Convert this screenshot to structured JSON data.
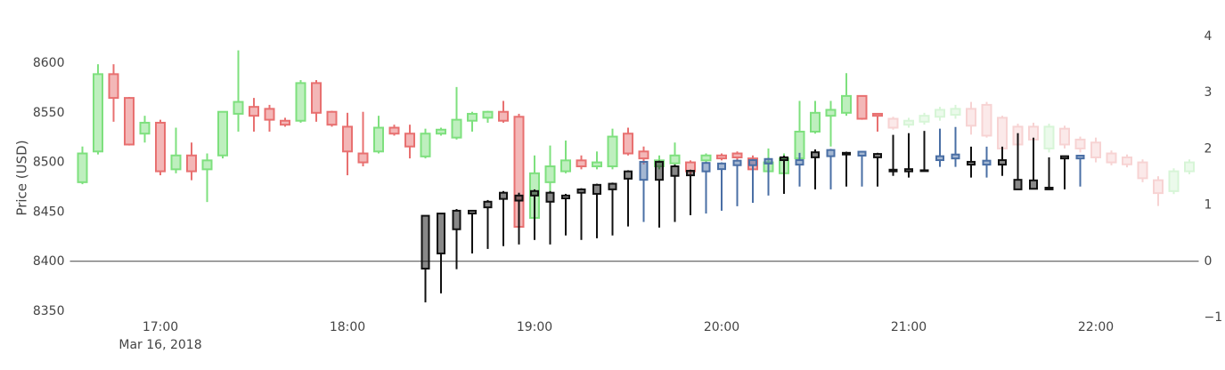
{
  "chart_data": {
    "type": "candlestick",
    "y_label": "Price (USD)",
    "x_date_label": "Mar 16, 2018",
    "xlim": [
      "2018-03-16 16:31",
      "2018-03-16 22:33"
    ],
    "xticks": [
      {
        "value": "2018-03-16 17:00",
        "label": "17:00"
      },
      {
        "value": "2018-03-16 18:00",
        "label": "18:00"
      },
      {
        "value": "2018-03-16 19:00",
        "label": "19:00"
      },
      {
        "value": "2018-03-16 20:00",
        "label": "20:00"
      },
      {
        "value": "2018-03-16 21:00",
        "label": "21:00"
      },
      {
        "value": "2018-03-16 22:00",
        "label": "22:00"
      }
    ],
    "ylim": [
      8343.5,
      8627
    ],
    "yticks": [
      8350,
      8400,
      8450,
      8500,
      8550,
      8600
    ],
    "y2lim": [
      -1,
      4
    ],
    "y2ticks": [
      {
        "value": -1,
        "label": "−1"
      },
      0,
      1,
      2,
      3,
      4
    ],
    "y2_zeroline": true,
    "grid": false,
    "series": [
      {
        "increasing_color": "#7ee07e",
        "decreasing_color": "#e87070",
        "opacity": 1,
        "x": [
          "2018-03-16 16:35",
          "2018-03-16 16:40",
          "2018-03-16 16:45",
          "2018-03-16 16:50",
          "2018-03-16 16:55",
          "2018-03-16 17:00",
          "2018-03-16 17:05",
          "2018-03-16 17:10",
          "2018-03-16 17:15",
          "2018-03-16 17:20",
          "2018-03-16 17:25",
          "2018-03-16 17:30",
          "2018-03-16 17:35",
          "2018-03-16 17:40",
          "2018-03-16 17:45",
          "2018-03-16 17:50",
          "2018-03-16 17:55",
          "2018-03-16 18:00",
          "2018-03-16 18:05",
          "2018-03-16 18:10",
          "2018-03-16 18:15",
          "2018-03-16 18:20",
          "2018-03-16 18:25",
          "2018-03-16 18:30",
          "2018-03-16 18:35",
          "2018-03-16 18:40",
          "2018-03-16 18:45",
          "2018-03-16 18:50",
          "2018-03-16 18:55",
          "2018-03-16 19:00",
          "2018-03-16 19:05",
          "2018-03-16 19:10",
          "2018-03-16 19:15",
          "2018-03-16 19:20",
          "2018-03-16 19:25",
          "2018-03-16 19:30",
          "2018-03-16 19:35",
          "2018-03-16 19:40",
          "2018-03-16 19:45",
          "2018-03-16 19:50",
          "2018-03-16 19:55",
          "2018-03-16 20:00",
          "2018-03-16 20:05",
          "2018-03-16 20:10",
          "2018-03-16 20:15",
          "2018-03-16 20:20",
          "2018-03-16 20:25",
          "2018-03-16 20:30",
          "2018-03-16 20:35",
          "2018-03-16 20:40",
          "2018-03-16 20:45",
          "2018-03-16 20:50"
        ],
        "open": [
          8480,
          8511,
          8589,
          8565,
          8529,
          8540,
          8493,
          8507,
          8493,
          8507,
          8549,
          8556,
          8554,
          8542,
          8542,
          8580,
          8551,
          8536,
          8509,
          8511,
          8535,
          8529,
          8506,
          8529,
          8525,
          8542,
          8545,
          8551,
          8546,
          8444,
          8480,
          8491,
          8502,
          8496,
          8496,
          8529,
          8511,
          8496,
          8499,
          8500,
          8502,
          8507,
          8509,
          8504,
          8491,
          8489,
          8504,
          8531,
          8547,
          8550,
          8567,
          8549
        ],
        "high": [
          8516,
          8599,
          8599,
          8566,
          8547,
          8543,
          8535,
          8520,
          8509,
          8551,
          8613,
          8565,
          8558,
          8545,
          8583,
          8583,
          8552,
          8550,
          8551,
          8547,
          8538,
          8538,
          8534,
          8535,
          8576,
          8551,
          8552,
          8562,
          8549,
          8507,
          8517,
          8522,
          8507,
          8511,
          8534,
          8535,
          8516,
          8507,
          8520,
          8502,
          8509,
          8509,
          8511,
          8507,
          8514,
          8509,
          8562,
          8562,
          8562,
          8590,
          8567,
          8549
        ],
        "low": [
          8478,
          8508,
          8541,
          8517,
          8520,
          8487,
          8489,
          8482,
          8460,
          8504,
          8531,
          8531,
          8531,
          8536,
          8540,
          8541,
          8536,
          8487,
          8496,
          8509,
          8527,
          8504,
          8504,
          8527,
          8523,
          8531,
          8540,
          8540,
          8435,
          8441,
          8471,
          8489,
          8493,
          8493,
          8493,
          8507,
          8498,
          8493,
          8496,
          8487,
          8500,
          8502,
          8502,
          8491,
          8487,
          8487,
          8502,
          8529,
          8516,
          8547,
          8543,
          8531
        ],
        "close": [
          8509,
          8589,
          8565,
          8518,
          8540,
          8491,
          8507,
          8491,
          8502,
          8551,
          8561,
          8547,
          8543,
          8538,
          8580,
          8550,
          8538,
          8511,
          8500,
          8535,
          8529,
          8516,
          8529,
          8533,
          8543,
          8549,
          8551,
          8542,
          8435,
          8489,
          8496,
          8502,
          8496,
          8500,
          8526,
          8509,
          8504,
          8502,
          8507,
          8491,
          8507,
          8504,
          8505,
          8493,
          8500,
          8504,
          8531,
          8550,
          8553,
          8567,
          8544,
          8547
        ]
      },
      {
        "increasing_color": "#7ee07e",
        "decreasing_color": "#e87070",
        "opacity": 0.3,
        "x": [
          "2018-03-16 20:55",
          "2018-03-16 21:00",
          "2018-03-16 21:05",
          "2018-03-16 21:10",
          "2018-03-16 21:15",
          "2018-03-16 21:20",
          "2018-03-16 21:25",
          "2018-03-16 21:30",
          "2018-03-16 21:35",
          "2018-03-16 21:40",
          "2018-03-16 21:45",
          "2018-03-16 21:50",
          "2018-03-16 21:55",
          "2018-03-16 22:00",
          "2018-03-16 22:05",
          "2018-03-16 22:10",
          "2018-03-16 22:15",
          "2018-03-16 22:20",
          "2018-03-16 22:25",
          "2018-03-16 22:30"
        ],
        "open": [
          8544,
          8538,
          8541,
          8546,
          8548,
          8554,
          8558,
          8545,
          8536,
          8536,
          8514,
          8534,
          8523,
          8520,
          8509,
          8505,
          8500,
          8482,
          8471,
          8491
        ],
        "high": [
          8546,
          8545,
          8550,
          8556,
          8558,
          8561,
          8561,
          8547,
          8539,
          8540,
          8539,
          8537,
          8526,
          8525,
          8512,
          8508,
          8503,
          8486,
          8494,
          8503
        ],
        "low": [
          8533,
          8535,
          8538,
          8542,
          8544,
          8528,
          8525,
          8510,
          8514,
          8518,
          8510,
          8514,
          8510,
          8500,
          8497,
          8495,
          8480,
          8456,
          8468,
          8488
        ],
        "close": [
          8535,
          8542,
          8547,
          8553,
          8554,
          8537,
          8527,
          8514,
          8518,
          8523,
          8536,
          8518,
          8514,
          8505,
          8500,
          8498,
          8484,
          8469,
          8491,
          8500
        ]
      },
      {
        "axis": "y2",
        "increasing_color": "#111111",
        "decreasing_color": "#4a6fa5",
        "opacity": 1,
        "x": [
          "2018-03-16 18:25",
          "2018-03-16 18:30",
          "2018-03-16 18:35",
          "2018-03-16 18:40",
          "2018-03-16 18:45",
          "2018-03-16 18:50",
          "2018-03-16 18:55",
          "2018-03-16 19:00",
          "2018-03-16 19:05",
          "2018-03-16 19:10",
          "2018-03-16 19:15",
          "2018-03-16 19:20",
          "2018-03-16 19:25",
          "2018-03-16 19:30",
          "2018-03-16 19:35",
          "2018-03-16 19:40",
          "2018-03-16 19:45",
          "2018-03-16 19:50",
          "2018-03-16 19:55",
          "2018-03-16 20:00",
          "2018-03-16 20:05",
          "2018-03-16 20:10",
          "2018-03-16 20:15",
          "2018-03-16 20:20",
          "2018-03-16 20:25",
          "2018-03-16 20:30",
          "2018-03-16 20:35",
          "2018-03-16 20:40",
          "2018-03-16 20:45",
          "2018-03-16 20:50",
          "2018-03-16 20:55",
          "2018-03-16 21:00",
          "2018-03-16 21:05",
          "2018-03-16 21:10",
          "2018-03-16 21:15",
          "2018-03-16 21:20",
          "2018-03-16 21:25",
          "2018-03-16 21:30",
          "2018-03-16 21:35",
          "2018-03-16 21:40",
          "2018-03-16 21:45",
          "2018-03-16 21:50",
          "2018-03-16 21:55"
        ],
        "open": [
          -0.13,
          0.14,
          0.57,
          0.85,
          0.96,
          1.11,
          1.08,
          1.17,
          1.06,
          1.12,
          1.22,
          1.2,
          1.28,
          1.47,
          1.77,
          1.45,
          1.52,
          1.53,
          1.75,
          1.74,
          1.79,
          1.8,
          1.82,
          1.8,
          1.8,
          1.85,
          1.98,
          1.9,
          1.95,
          1.85,
          1.6,
          1.6,
          1.61,
          1.87,
          1.9,
          1.72,
          1.79,
          1.72,
          1.28,
          1.29,
          1.28,
          1.83,
          1.88
        ],
        "high": [
          0.81,
          0.85,
          0.93,
          0.9,
          1.09,
          1.25,
          1.22,
          1.28,
          1.25,
          1.2,
          1.3,
          1.38,
          1.4,
          1.62,
          1.77,
          1.79,
          1.72,
          1.63,
          1.77,
          1.76,
          1.81,
          1.82,
          1.84,
          1.88,
          1.93,
          1.99,
          2.0,
          1.95,
          1.96,
          1.93,
          2.25,
          2.28,
          2.32,
          2.36,
          2.39,
          2.04,
          2.04,
          2.04,
          2.28,
          2.2,
          1.85,
          1.87,
          1.88
        ],
        "low": [
          -0.73,
          -0.57,
          -0.14,
          0.14,
          0.22,
          0.27,
          0.3,
          0.38,
          0.3,
          0.46,
          0.38,
          0.41,
          0.46,
          0.62,
          0.7,
          0.6,
          0.7,
          0.82,
          0.85,
          0.9,
          0.98,
          1.04,
          1.17,
          1.2,
          1.33,
          1.28,
          1.28,
          1.33,
          1.33,
          1.33,
          1.52,
          1.49,
          1.61,
          1.68,
          1.68,
          1.49,
          1.49,
          1.52,
          1.28,
          1.28,
          1.28,
          1.28,
          1.33
        ],
        "close": [
          0.81,
          0.85,
          0.9,
          0.9,
          1.06,
          1.22,
          1.17,
          1.25,
          1.22,
          1.17,
          1.28,
          1.36,
          1.38,
          1.6,
          1.45,
          1.77,
          1.69,
          1.61,
          1.6,
          1.64,
          1.71,
          1.71,
          1.74,
          1.85,
          1.72,
          1.94,
          1.87,
          1.93,
          1.88,
          1.91,
          1.63,
          1.64,
          1.62,
          1.8,
          1.83,
          1.77,
          1.72,
          1.8,
          1.45,
          1.44,
          1.31,
          1.87,
          1.83
        ]
      }
    ]
  }
}
